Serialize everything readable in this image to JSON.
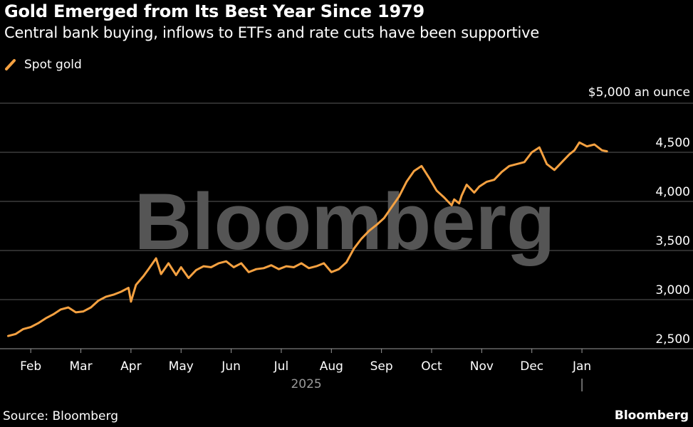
{
  "chart_data": {
    "type": "line",
    "title": "Gold Emerged from Its Best Year Since 1979",
    "subtitle": "Central bank buying, inflows to ETFs and rate cuts have been supportive",
    "legend": [
      "Spot gold"
    ],
    "legend_position": "top-left",
    "unit_label": "$5,000 an ounce",
    "y_ticks": [
      2500,
      3000,
      3500,
      4000,
      4500
    ],
    "y_tick_labels": [
      "2,500",
      "3,000",
      "3,500",
      "4,000",
      "4,500"
    ],
    "ylim": [
      2500,
      5000
    ],
    "x_ticks": [
      "Feb",
      "Mar",
      "Apr",
      "May",
      "Jun",
      "Jul",
      "Aug",
      "Sep",
      "Oct",
      "Nov",
      "Dec",
      "Jan"
    ],
    "x_tick_pos": [
      1,
      2,
      3,
      4,
      5,
      6,
      7,
      8,
      9,
      10,
      11,
      12
    ],
    "x_year_label": "2025",
    "xlim": [
      0.5,
      13.25
    ],
    "grid": true,
    "color": "#f5a141",
    "series": [
      {
        "name": "Spot gold",
        "x": [
          0.55,
          0.7,
          0.85,
          1.0,
          1.15,
          1.3,
          1.45,
          1.6,
          1.75,
          1.9,
          2.05,
          2.2,
          2.35,
          2.5,
          2.65,
          2.8,
          2.95,
          3.0,
          3.1,
          3.25,
          3.35,
          3.5,
          3.6,
          3.75,
          3.9,
          4.0,
          4.15,
          4.3,
          4.45,
          4.6,
          4.75,
          4.9,
          5.05,
          5.2,
          5.35,
          5.5,
          5.65,
          5.8,
          5.95,
          6.1,
          6.25,
          6.4,
          6.55,
          6.7,
          6.85,
          7.0,
          7.15,
          7.3,
          7.45,
          7.6,
          7.75,
          7.9,
          8.05,
          8.2,
          8.35,
          8.5,
          8.65,
          8.8,
          8.95,
          9.1,
          9.25,
          9.4,
          9.45,
          9.55,
          9.6,
          9.7,
          9.85,
          9.95,
          10.1,
          10.25,
          10.4,
          10.55,
          10.7,
          10.85,
          11.0,
          11.15,
          11.3,
          11.45,
          11.6,
          11.75,
          11.85,
          11.95,
          12.1,
          12.25,
          12.4,
          12.5
        ],
        "values": [
          2630,
          2650,
          2700,
          2720,
          2760,
          2810,
          2850,
          2900,
          2920,
          2870,
          2880,
          2920,
          2990,
          3030,
          3050,
          3080,
          3120,
          2980,
          3150,
          3240,
          3310,
          3420,
          3260,
          3370,
          3250,
          3330,
          3220,
          3300,
          3340,
          3330,
          3370,
          3390,
          3330,
          3370,
          3280,
          3310,
          3320,
          3350,
          3310,
          3340,
          3330,
          3370,
          3320,
          3340,
          3370,
          3280,
          3310,
          3380,
          3520,
          3620,
          3700,
          3760,
          3830,
          3940,
          4050,
          4200,
          4310,
          4360,
          4240,
          4110,
          4040,
          3960,
          4020,
          3980,
          4060,
          4170,
          4090,
          4150,
          4200,
          4220,
          4300,
          4360,
          4380,
          4400,
          4500,
          4550,
          4380,
          4320,
          4400,
          4480,
          4520,
          4600,
          4560,
          4580,
          4520,
          4510
        ]
      }
    ]
  },
  "footer": {
    "source": "Source: Bloomberg",
    "brand": "Bloomberg"
  },
  "watermark": "Bloomberg"
}
